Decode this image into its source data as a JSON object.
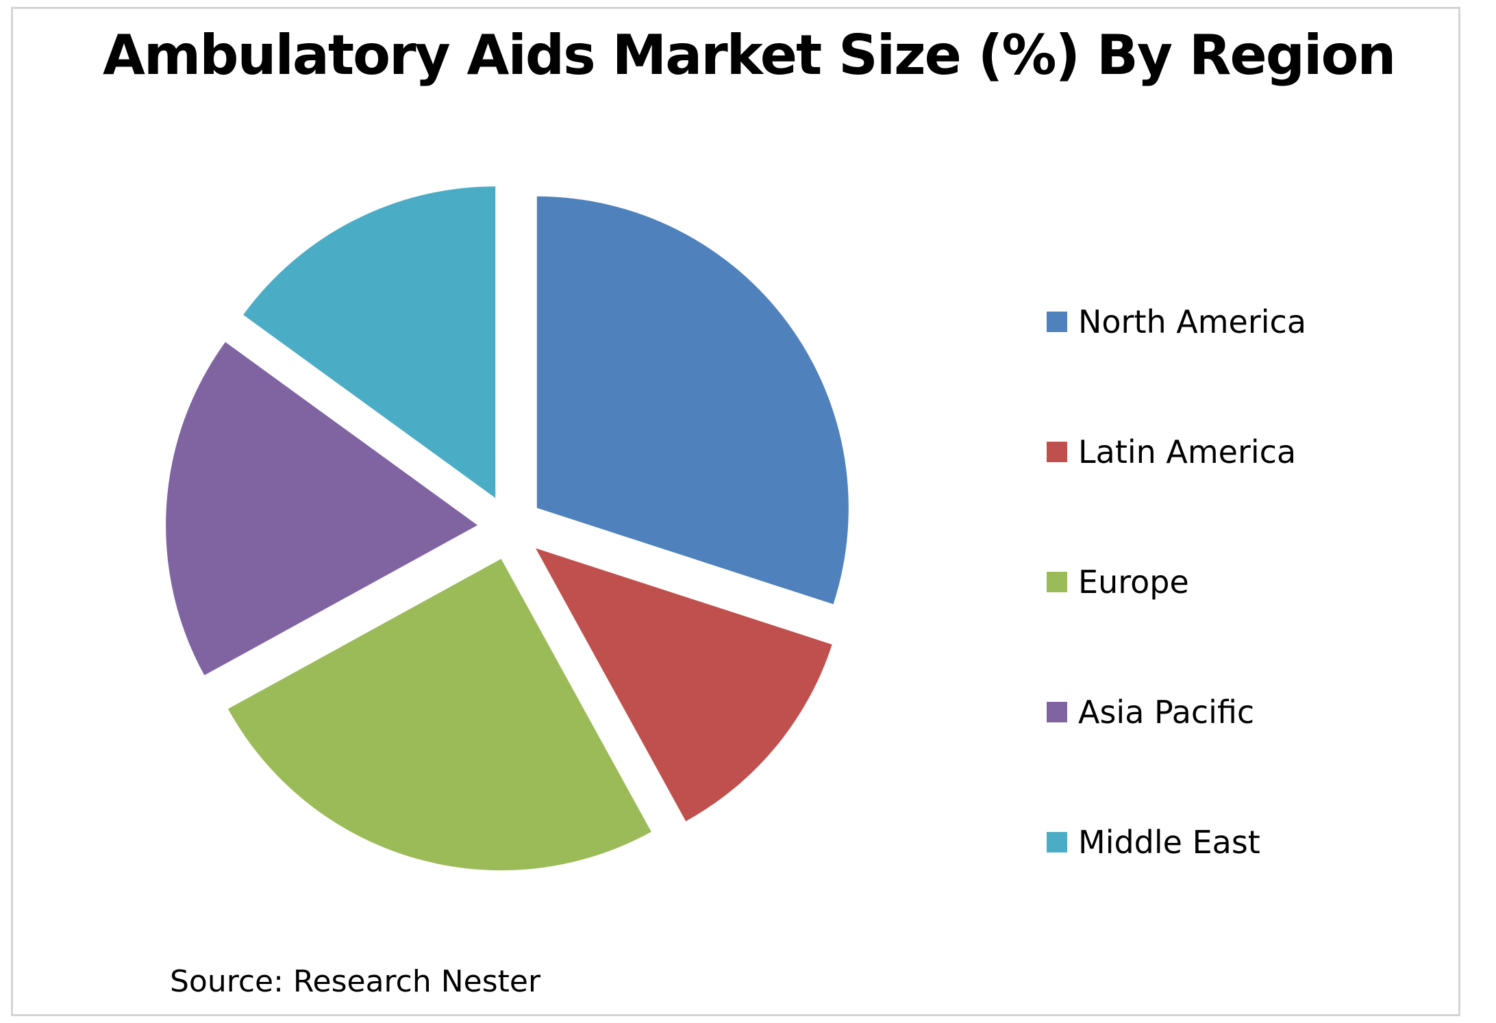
{
  "chart_data": {
    "type": "pie",
    "title": "Ambulatory Aids Market Size (%) By Region",
    "categories": [
      "North America",
      "Latin America",
      "Europe",
      "Asia Pacific",
      "Middle East"
    ],
    "values": [
      30,
      12,
      25,
      18,
      15
    ],
    "colors": [
      "#4F81BD",
      "#C0504D",
      "#9BBB59",
      "#8064A2",
      "#4BACC6"
    ],
    "exploded": true,
    "legend_position": "right",
    "source": "Source: Research Nester"
  }
}
